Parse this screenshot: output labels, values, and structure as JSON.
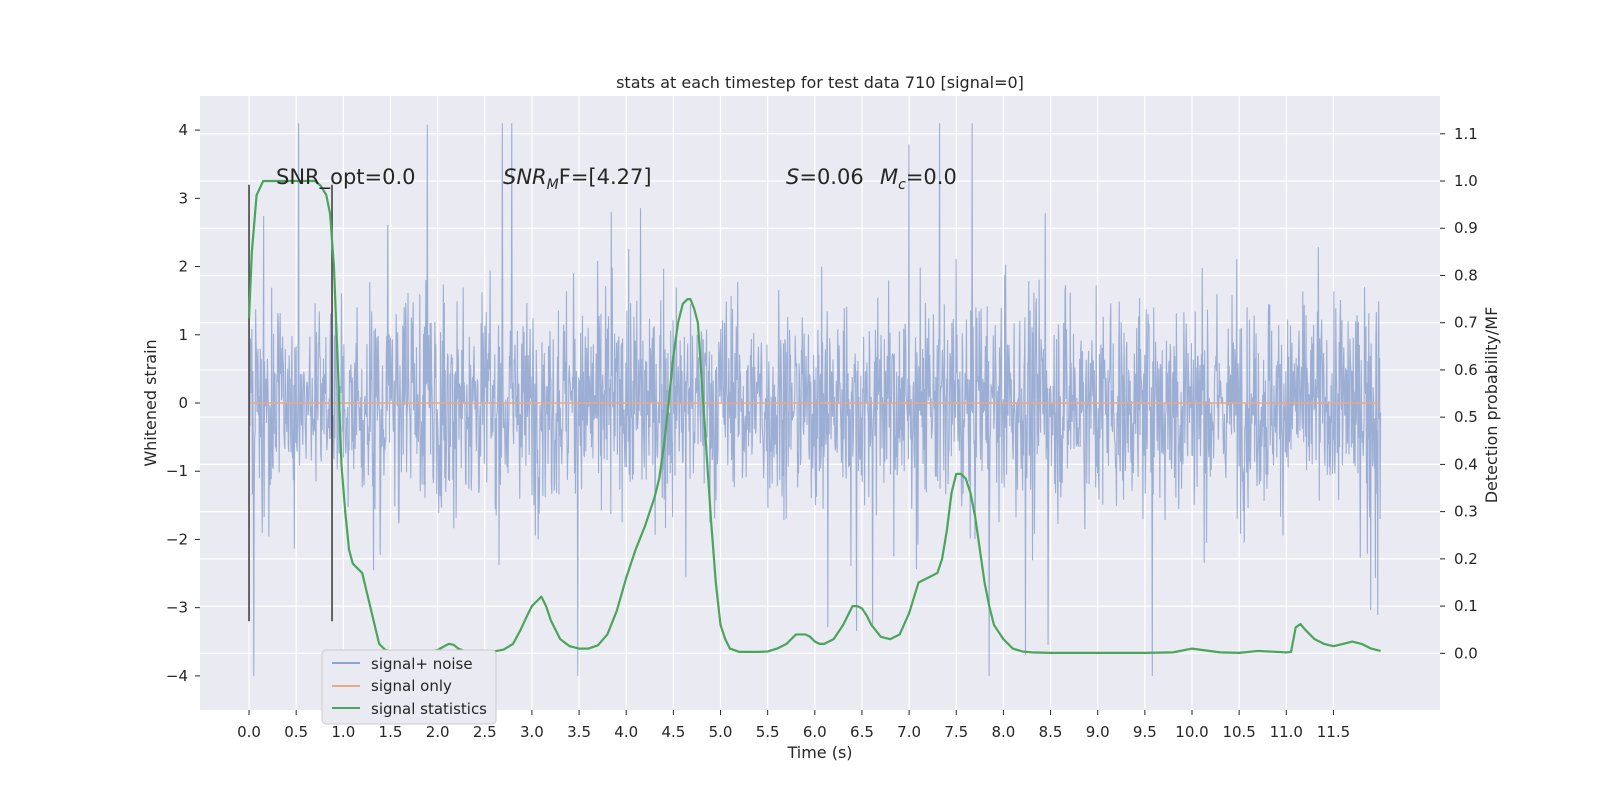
{
  "chart_data": {
    "type": "line",
    "title": "stats at each timestep for test data 710 [signal=0]",
    "xlabel": "Time (s)",
    "ylabel": "Whitened strain",
    "y2label": "Detection probability/MF",
    "xlim": [
      -0.52,
      12.63
    ],
    "ylim": [
      -4.5,
      4.5
    ],
    "y2lim": [
      -0.12,
      1.18
    ],
    "x_ticks": [
      "0.0",
      "0.5",
      "1.0",
      "1.5",
      "2.0",
      "2.5",
      "3.0",
      "3.5",
      "4.0",
      "4.5",
      "5.0",
      "5.5",
      "6.0",
      "6.5",
      "7.0",
      "7.5",
      "8.0",
      "8.5",
      "9.0",
      "9.5",
      "10.0",
      "10.5",
      "11.0",
      "11.5"
    ],
    "y_ticks": [
      "4",
      "3",
      "2",
      "1",
      "0",
      "−1",
      "−2",
      "−3",
      "−4"
    ],
    "y2_ticks": [
      "1.1",
      "1.0",
      "0.9",
      "0.8",
      "0.7",
      "0.6",
      "0.5",
      "0.4",
      "0.3",
      "0.2",
      "0.1",
      "0.0"
    ],
    "grid": true,
    "legend_position": "bottom-left",
    "annotations": {
      "snr_opt": "SNR_opt=0.0",
      "snr_mf_prefix": "SNR",
      "snr_mf_sub": "M",
      "snr_mf_rest": "F=[4.27]",
      "s_stat": "S",
      "s_value": "=0.06",
      "mc_label": "M",
      "mc_sub": "c",
      "mc_value": "=0.0"
    },
    "series": [
      {
        "name": "signal+ noise",
        "color": "#8ea3cf",
        "kind": "noise",
        "x_range": [
          0.0,
          12.0
        ],
        "typical_range": [
          -2.0,
          2.0
        ],
        "spike_extent": [
          -4.0,
          4.1
        ]
      },
      {
        "name": "signal only",
        "color": "#e8a98a",
        "kind": "flat",
        "values": [
          0.0
        ]
      },
      {
        "name": "signal statistics",
        "color": "#4aa55a",
        "axis": "right",
        "x": [
          0.0,
          0.03,
          0.08,
          0.15,
          0.22,
          0.3,
          0.45,
          0.6,
          0.7,
          0.76,
          0.82,
          0.86,
          0.9,
          0.94,
          0.98,
          1.02,
          1.06,
          1.1,
          1.15,
          1.2,
          1.26,
          1.32,
          1.38,
          1.44,
          1.5,
          1.6,
          1.7,
          1.8,
          1.9,
          2.0,
          2.08,
          2.12,
          2.17,
          2.22,
          2.3,
          2.4,
          2.5,
          2.6,
          2.7,
          2.8,
          2.88,
          2.95,
          3.0,
          3.05,
          3.1,
          3.15,
          3.2,
          3.3,
          3.4,
          3.5,
          3.6,
          3.7,
          3.8,
          3.9,
          4.0,
          4.1,
          4.2,
          4.3,
          4.35,
          4.4,
          4.45,
          4.5,
          4.55,
          4.6,
          4.65,
          4.68,
          4.72,
          4.76,
          4.8,
          4.85,
          4.9,
          4.95,
          5.0,
          5.05,
          5.1,
          5.2,
          5.3,
          5.4,
          5.5,
          5.6,
          5.7,
          5.8,
          5.85,
          5.9,
          5.95,
          6.0,
          6.05,
          6.1,
          6.2,
          6.3,
          6.4,
          6.45,
          6.5,
          6.55,
          6.6,
          6.7,
          6.8,
          6.9,
          7.0,
          7.1,
          7.2,
          7.3,
          7.35,
          7.4,
          7.45,
          7.5,
          7.55,
          7.6,
          7.65,
          7.7,
          7.75,
          7.8,
          7.85,
          7.9,
          8.0,
          8.1,
          8.2,
          8.3,
          8.5,
          9.0,
          9.5,
          9.8,
          10.0,
          10.3,
          10.5,
          10.7,
          11.0,
          11.05,
          11.1,
          11.15,
          11.2,
          11.3,
          11.4,
          11.5,
          11.6,
          11.7,
          11.8,
          11.9,
          12.0
        ],
        "values": [
          0.71,
          0.85,
          0.97,
          1.0,
          1.0,
          1.0,
          1.0,
          1.0,
          1.0,
          0.99,
          0.97,
          0.93,
          0.82,
          0.62,
          0.4,
          0.3,
          0.22,
          0.19,
          0.18,
          0.17,
          0.12,
          0.07,
          0.02,
          0.008,
          0.004,
          0.003,
          0.003,
          0.003,
          0.004,
          0.007,
          0.016,
          0.02,
          0.018,
          0.01,
          0.004,
          0.003,
          0.003,
          0.004,
          0.008,
          0.02,
          0.05,
          0.08,
          0.1,
          0.11,
          0.12,
          0.1,
          0.07,
          0.03,
          0.015,
          0.01,
          0.01,
          0.017,
          0.04,
          0.09,
          0.16,
          0.22,
          0.27,
          0.33,
          0.37,
          0.44,
          0.53,
          0.63,
          0.7,
          0.74,
          0.75,
          0.75,
          0.73,
          0.7,
          0.58,
          0.43,
          0.28,
          0.15,
          0.06,
          0.03,
          0.01,
          0.003,
          0.003,
          0.003,
          0.004,
          0.01,
          0.02,
          0.04,
          0.04,
          0.04,
          0.035,
          0.025,
          0.02,
          0.02,
          0.03,
          0.06,
          0.1,
          0.1,
          0.095,
          0.08,
          0.06,
          0.035,
          0.03,
          0.04,
          0.085,
          0.15,
          0.16,
          0.17,
          0.2,
          0.26,
          0.34,
          0.38,
          0.38,
          0.37,
          0.34,
          0.29,
          0.22,
          0.15,
          0.1,
          0.06,
          0.03,
          0.01,
          0.004,
          0.002,
          0.001,
          0.001,
          0.001,
          0.002,
          0.01,
          0.002,
          0.001,
          0.005,
          0.002,
          0.003,
          0.055,
          0.062,
          0.05,
          0.03,
          0.02,
          0.015,
          0.02,
          0.025,
          0.02,
          0.01,
          0.005
        ]
      }
    ],
    "markers": [
      {
        "name": "vertical-marker-start",
        "x": 0.0,
        "y_range": [
          -3.2,
          3.2
        ]
      },
      {
        "name": "vertical-marker-end",
        "x": 0.88,
        "y_range": [
          -3.2,
          3.2
        ]
      }
    ]
  },
  "colors": {
    "plot_background": "#eaeaf2",
    "grid": "#ffffff",
    "noise": "#8ea3cf",
    "signal_only": "#e8a98a",
    "statistics": "#4aa55a",
    "marker": "#444444"
  }
}
